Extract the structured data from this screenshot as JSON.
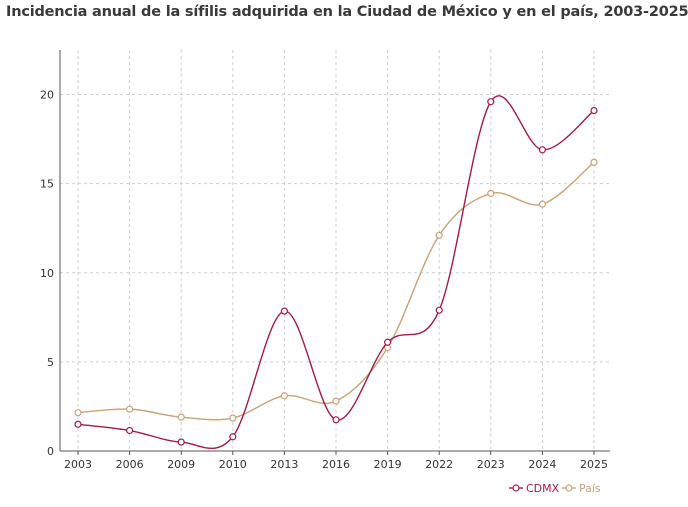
{
  "chart_data": {
    "type": "line",
    "title": "Incidencia anual de la sífilis adquirida en la Ciudad de México y en el país, 2003-2025",
    "xlabel": "",
    "ylabel": "",
    "categories": [
      "2003",
      "2006",
      "2009",
      "2010",
      "2013",
      "2016",
      "2019",
      "2022",
      "2023",
      "2024",
      "2025"
    ],
    "ylim": [
      0,
      22.5
    ],
    "yticks": [
      0,
      5,
      10,
      15,
      20
    ],
    "grid": true,
    "legend_position": "bottom-right",
    "series": [
      {
        "name": "CDMX",
        "color": "#9e1b4b",
        "values": [
          1.5,
          1.15,
          0.5,
          0.8,
          7.85,
          1.75,
          6.1,
          7.9,
          19.6,
          16.9,
          19.1
        ]
      },
      {
        "name": "País",
        "color": "#c9a27a",
        "values": [
          2.15,
          2.35,
          1.9,
          1.85,
          3.1,
          2.8,
          5.8,
          12.1,
          14.45,
          13.85,
          16.2
        ]
      }
    ]
  }
}
